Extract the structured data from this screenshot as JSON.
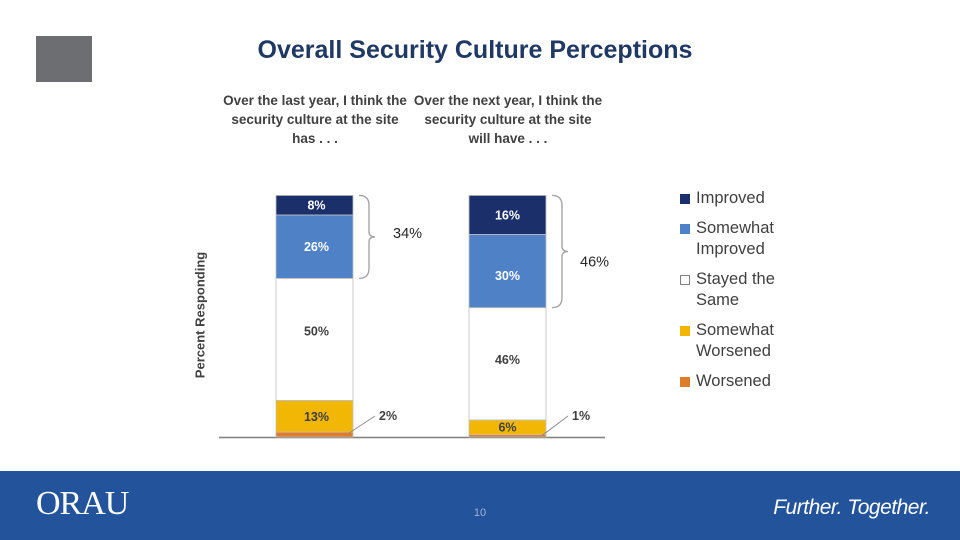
{
  "slide": {
    "title": "Overall Security Culture Perceptions",
    "page_number": "10",
    "footer_logo": "ORAU",
    "footer_tagline": "Further. Together."
  },
  "chart_data": {
    "type": "bar",
    "stacked": true,
    "title": "Overall Security Culture Perceptions",
    "ylabel": "Percent Responding",
    "categories": [
      "Over the last year, I think the security culture at the site has . . .",
      "Over the next year, I think the security culture at the site will have . . ."
    ],
    "series": [
      {
        "name": "Worsened",
        "values": [
          2,
          1
        ],
        "labels": [
          "2%",
          "1%"
        ],
        "color": "#e07b27"
      },
      {
        "name": "Somewhat Worsened",
        "values": [
          13,
          6
        ],
        "labels": [
          "13%",
          "6%"
        ],
        "color": "#f2b705"
      },
      {
        "name": "Stayed the Same",
        "values": [
          50,
          46
        ],
        "labels": [
          "50%",
          "46%"
        ],
        "color": "#ffffff"
      },
      {
        "name": "Somewhat Improved",
        "values": [
          26,
          30
        ],
        "labels": [
          "26%",
          "30%"
        ],
        "color": "#4f81c7"
      },
      {
        "name": "Improved",
        "values": [
          8,
          16
        ],
        "labels": [
          "8%",
          "16%"
        ],
        "color": "#1b2f6b"
      }
    ],
    "annotations": [
      {
        "category": 0,
        "text": "34%",
        "spans": [
          "Improved",
          "Somewhat Improved"
        ]
      },
      {
        "category": 1,
        "text": "46%",
        "spans": [
          "Improved",
          "Somewhat Improved"
        ]
      }
    ],
    "ylim": [
      0,
      100
    ],
    "grid": false,
    "legend_position": "right"
  },
  "legend": {
    "items": [
      {
        "label_1": "Improved",
        "label_2": "",
        "color": "#1b2f6b"
      },
      {
        "label_1": "Somewhat",
        "label_2": "Improved",
        "color": "#4f81c7"
      },
      {
        "label_1": "Stayed the",
        "label_2": "Same",
        "color": "#ffffff"
      },
      {
        "label_1": "Somewhat",
        "label_2": "Worsened",
        "color": "#f2b705"
      },
      {
        "label_1": "Worsened",
        "label_2": "",
        "color": "#e07b27"
      }
    ]
  }
}
